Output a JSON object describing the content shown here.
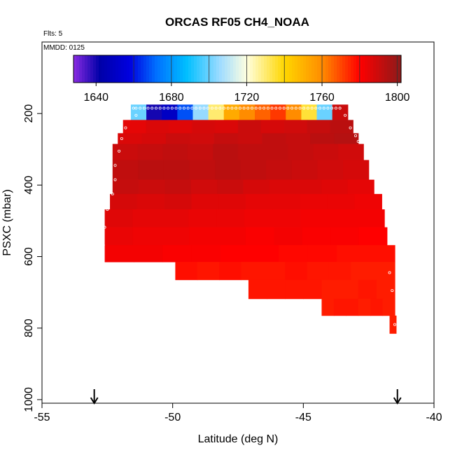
{
  "chart_data": {
    "type": "heatmap",
    "title": "ORCAS RF05 CH4_NOAA",
    "flights_label": "Flts: 5",
    "date_label": "MMDD: 0125",
    "xlabel": "Latitude (deg N)",
    "ylabel": "PSXC (mbar)",
    "xlim": [
      -55,
      -40
    ],
    "ylim": [
      1010,
      0
    ],
    "x_ticks": [
      -55,
      -50,
      -45,
      -40
    ],
    "x_tick_labels": [
      "-55",
      "-50",
      "-45",
      "-40"
    ],
    "y_ticks": [
      200,
      400,
      600,
      800,
      1000
    ],
    "y_tick_labels": [
      "200",
      "400",
      "600",
      "800",
      "1000"
    ],
    "colorbar": {
      "min": 1628,
      "max": 1802,
      "ticks": [
        1640,
        1680,
        1720,
        1760,
        1800
      ],
      "tick_labels": [
        "1640",
        "1680",
        "1720",
        "1760",
        "1800"
      ],
      "divisions": [
        1660,
        1680,
        1700,
        1720,
        1740,
        1760,
        1780,
        1800
      ],
      "stops": [
        {
          "v": 1628,
          "c": "#8a2be2"
        },
        {
          "v": 1642,
          "c": "#0000a8"
        },
        {
          "v": 1658,
          "c": "#0000e0"
        },
        {
          "v": 1672,
          "c": "#0070ff"
        },
        {
          "v": 1688,
          "c": "#00bfff"
        },
        {
          "v": 1706,
          "c": "#9fdcff"
        },
        {
          "v": 1720,
          "c": "#ffffe0"
        },
        {
          "v": 1740,
          "c": "#ffd700"
        },
        {
          "v": 1760,
          "c": "#ff8c00"
        },
        {
          "v": 1780,
          "c": "#ff0000"
        },
        {
          "v": 1802,
          "c": "#8b1a1a"
        }
      ]
    },
    "cells": [
      {
        "lat0": -51.6,
        "lat1": -43.3,
        "p0": 175,
        "p1": 218,
        "v": [
          1700,
          1640,
          1650,
          1668,
          1705,
          1730,
          1752,
          1760,
          1766,
          1772,
          1760,
          1735,
          1700,
          1790
        ]
      },
      {
        "lat0": -51.9,
        "lat1": -43.1,
        "p0": 218,
        "p1": 255,
        "v": [
          1785,
          1787,
          1786,
          1788,
          1787,
          1790,
          1788,
          1789,
          1791,
          1793
        ]
      },
      {
        "lat0": -52.1,
        "lat1": -42.9,
        "p0": 255,
        "p1": 285,
        "v": [
          1787,
          1788,
          1790,
          1789,
          1791,
          1790,
          1792,
          1791,
          1793,
          1794
        ]
      },
      {
        "lat0": -52.3,
        "lat1": -42.7,
        "p0": 285,
        "p1": 330,
        "v": [
          1790,
          1791,
          1792,
          1791,
          1793,
          1792,
          1792,
          1791,
          1790,
          1789
        ]
      },
      {
        "lat0": -52.3,
        "lat1": -42.5,
        "p0": 330,
        "p1": 385,
        "v": [
          1792,
          1793,
          1793,
          1792,
          1793,
          1792,
          1791,
          1790,
          1789,
          1788
        ]
      },
      {
        "lat0": -52.3,
        "lat1": -42.3,
        "p0": 385,
        "p1": 425,
        "v": [
          1791,
          1790,
          1791,
          1789,
          1790,
          1788,
          1787,
          1787,
          1786,
          1785
        ]
      },
      {
        "lat0": -52.4,
        "lat1": -42.0,
        "p0": 425,
        "p1": 468,
        "v": [
          1788,
          1787,
          1788,
          1786,
          1786,
          1785,
          1785,
          1784,
          1784,
          1783
        ]
      },
      {
        "lat0": -52.6,
        "lat1": -41.9,
        "p0": 468,
        "p1": 518,
        "v": [
          1786,
          1785,
          1785,
          1784,
          1784,
          1783,
          1783,
          1782,
          1782,
          1782
        ]
      },
      {
        "lat0": -52.6,
        "lat1": -41.8,
        "p0": 518,
        "p1": 568,
        "v": [
          1784,
          1783,
          1783,
          1782,
          1782,
          1781,
          1782,
          1781,
          1781,
          1780
        ]
      },
      {
        "lat0": -52.6,
        "lat1": -41.5,
        "p0": 568,
        "p1": 615,
        "v": [
          1782,
          1782,
          1781,
          1781,
          1780,
          1780,
          1779,
          1779,
          1778,
          1778
        ]
      },
      {
        "lat0": -49.9,
        "lat1": -41.5,
        "p0": 615,
        "p1": 665,
        "v": [
          1778,
          1777,
          1778,
          1777,
          1777,
          1778,
          1777,
          1777,
          1776,
          1776
        ]
      },
      {
        "lat0": -47.1,
        "lat1": -41.5,
        "p0": 665,
        "p1": 718,
        "v": [
          1777,
          1777,
          1777,
          1777,
          1776,
          1776,
          1777,
          1776
        ]
      },
      {
        "lat0": -44.3,
        "lat1": -41.5,
        "p0": 718,
        "p1": 765,
        "v": [
          1776,
          1777,
          1777,
          1776,
          1777,
          1776
        ]
      },
      {
        "lat0": -41.7,
        "lat1": -41.45,
        "p0": 765,
        "p1": 815,
        "v": [
          1776
        ]
      }
    ],
    "sample_points": [
      {
        "lat": -51.5,
        "p": 185
      },
      {
        "lat": -51.4,
        "p": 205
      },
      {
        "lat": -51.8,
        "p": 240
      },
      {
        "lat": -51.95,
        "p": 270
      },
      {
        "lat": -52.05,
        "p": 305
      },
      {
        "lat": -52.2,
        "p": 345
      },
      {
        "lat": -52.2,
        "p": 385
      },
      {
        "lat": -52.3,
        "p": 425
      },
      {
        "lat": -52.5,
        "p": 468
      },
      {
        "lat": -52.6,
        "p": 518
      },
      {
        "lat": -52.65,
        "p": 568
      },
      {
        "lat": -43.4,
        "p": 205
      },
      {
        "lat": -43.2,
        "p": 240
      },
      {
        "lat": -43.0,
        "p": 262
      },
      {
        "lat": -42.9,
        "p": 278
      },
      {
        "lat": -41.7,
        "p": 645
      },
      {
        "lat": -41.6,
        "p": 695
      },
      {
        "lat": -41.5,
        "p": 790
      }
    ],
    "sample_row": {
      "lat0": -51.4,
      "lat1": -43.6,
      "p": 185,
      "count": 52
    },
    "arrows": [
      -53.0,
      -41.4
    ]
  }
}
